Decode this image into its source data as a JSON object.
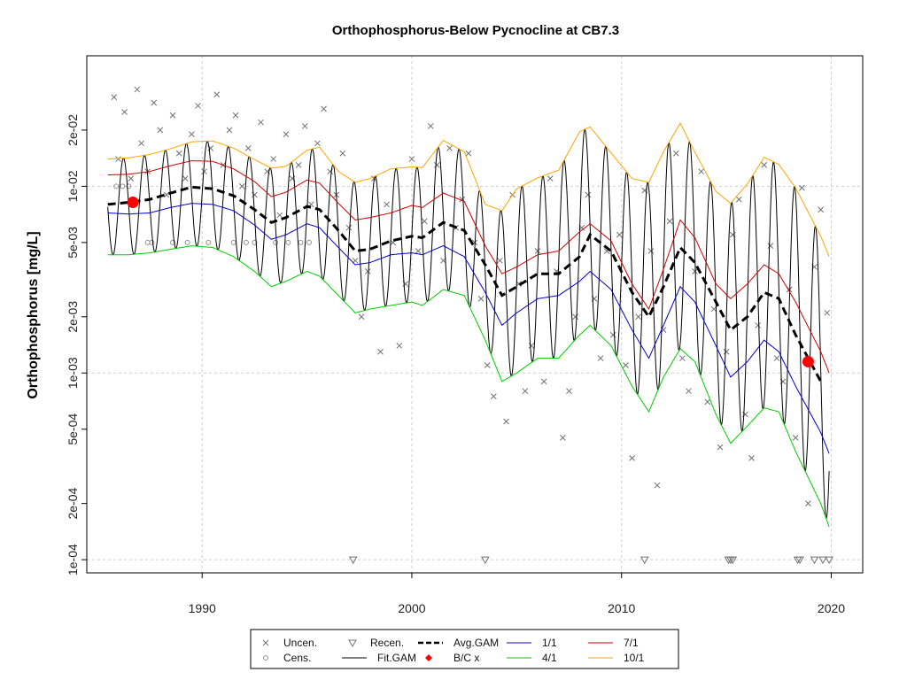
{
  "chart_data": {
    "type": "line",
    "title": "Orthophosphorus-Below Pycnocline at CB7.3",
    "xlabel": "",
    "ylabel": "Orthophosphorus [mg/L]",
    "y_scale": "log",
    "xlim": [
      1984.5,
      2021.5
    ],
    "ylim": [
      8.5e-05,
      0.05
    ],
    "x_ticks": [
      1990,
      2000,
      2010,
      2020
    ],
    "x_tick_labels": [
      "1990",
      "2000",
      "2010",
      "2020"
    ],
    "y_ticks": [
      0.0001,
      0.0002,
      0.0005,
      0.001,
      0.002,
      0.005,
      0.01,
      0.02
    ],
    "y_tick_labels": [
      "1e-04",
      "2e-04",
      "5e-04",
      "1e-03",
      "2e-03",
      "5e-03",
      "1e-02",
      "2e-02"
    ],
    "grid": true,
    "legend": {
      "position": "bottom-center",
      "entries": [
        "Uncen.",
        "Cens.",
        "Recen.",
        "Fit.GAM",
        "Avg.GAM",
        "B/C x",
        "1/1",
        "4/1",
        "7/1",
        "10/1"
      ]
    },
    "series": [
      {
        "name": "Avg.GAM",
        "color": "#000000",
        "x": [
          1985.5,
          1986.5,
          1987.5,
          1988.5,
          1989.5,
          1990.5,
          1991.5,
          1992.5,
          1993.3,
          1994.0,
          1995.0,
          1995.6,
          1996.5,
          1997.3,
          1998.0,
          1999.0,
          2000.0,
          2000.5,
          2001.5,
          2002.5,
          2003.5,
          2004.3,
          2005.0,
          2006.0,
          2007.0,
          2008.0,
          2008.5,
          2009.5,
          2010.5,
          2011.3,
          2012.0,
          2012.8,
          2013.5,
          2014.5,
          2015.2,
          2016.0,
          2016.8,
          2017.5,
          2018.3,
          2019.5
        ],
        "y": [
          0.008,
          0.0082,
          0.0085,
          0.0092,
          0.0099,
          0.0097,
          0.0089,
          0.0075,
          0.0064,
          0.0068,
          0.0078,
          0.0075,
          0.0058,
          0.0045,
          0.0046,
          0.0051,
          0.0054,
          0.0053,
          0.0064,
          0.0058,
          0.0038,
          0.0026,
          0.0029,
          0.0034,
          0.0034,
          0.0042,
          0.0055,
          0.0045,
          0.0027,
          0.002,
          0.0029,
          0.0047,
          0.0039,
          0.0024,
          0.0017,
          0.002,
          0.0027,
          0.0025,
          0.0016,
          0.0009
        ]
      },
      {
        "name": "1/1",
        "color": "#0000cc",
        "x": [
          1985.5,
          1986.5,
          1987.5,
          1988.5,
          1989.5,
          1990.5,
          1991.5,
          1992.5,
          1993.3,
          1994.0,
          1995.0,
          1995.6,
          1996.5,
          1997.3,
          1998.0,
          1999.0,
          2000.0,
          2000.5,
          2001.5,
          2002.5,
          2003.5,
          2004.3,
          2005.0,
          2006.0,
          2007.0,
          2008.0,
          2008.5,
          2009.5,
          2010.5,
          2011.3,
          2012.0,
          2012.8,
          2013.5,
          2014.5,
          2015.2,
          2016.0,
          2016.8,
          2017.5,
          2018.3,
          2019.5,
          2019.9
        ],
        "y": [
          0.0072,
          0.0071,
          0.0072,
          0.0077,
          0.0081,
          0.008,
          0.0074,
          0.0062,
          0.0052,
          0.0055,
          0.0063,
          0.006,
          0.0047,
          0.0038,
          0.0039,
          0.0043,
          0.0044,
          0.0043,
          0.0048,
          0.0042,
          0.0027,
          0.0018,
          0.0021,
          0.0025,
          0.0026,
          0.0031,
          0.0035,
          0.0028,
          0.0017,
          0.0012,
          0.0018,
          0.0029,
          0.0024,
          0.0014,
          0.00095,
          0.00115,
          0.0015,
          0.0013,
          0.00085,
          0.00048,
          0.00037
        ]
      },
      {
        "name": "4/1",
        "color": "#00cc00",
        "x": [
          1985.5,
          1986.5,
          1987.5,
          1988.5,
          1989.5,
          1990.5,
          1991.5,
          1992.5,
          1993.3,
          1994.0,
          1995.0,
          1995.6,
          1996.5,
          1997.3,
          1998.0,
          1999.0,
          2000.0,
          2000.5,
          2001.5,
          2002.5,
          2003.5,
          2004.3,
          2005.0,
          2006.0,
          2007.0,
          2008.0,
          2008.5,
          2009.5,
          2010.5,
          2011.3,
          2012.0,
          2012.8,
          2013.5,
          2014.5,
          2015.2,
          2016.0,
          2016.8,
          2017.5,
          2018.3,
          2019.5,
          2019.9
        ],
        "y": [
          0.0043,
          0.0043,
          0.0044,
          0.0046,
          0.0048,
          0.0047,
          0.0042,
          0.0035,
          0.0029,
          0.0031,
          0.0035,
          0.0033,
          0.0026,
          0.0021,
          0.0022,
          0.0023,
          0.0024,
          0.0023,
          0.0028,
          0.0026,
          0.0015,
          0.0009,
          0.001,
          0.0012,
          0.0012,
          0.0016,
          0.0018,
          0.0014,
          0.00085,
          0.00062,
          0.00095,
          0.00135,
          0.00115,
          0.0006,
          0.00042,
          0.00052,
          0.00065,
          0.00062,
          0.00038,
          0.0002,
          0.00015
        ]
      },
      {
        "name": "7/1",
        "color": "#cc0000",
        "x": [
          1985.5,
          1986.5,
          1987.5,
          1988.5,
          1989.5,
          1990.5,
          1991.5,
          1992.5,
          1993.3,
          1994.0,
          1995.0,
          1995.6,
          1996.5,
          1997.3,
          1998.0,
          1999.0,
          2000.0,
          2000.5,
          2001.5,
          2002.5,
          2003.5,
          2004.3,
          2005.0,
          2006.0,
          2007.0,
          2008.0,
          2008.5,
          2009.5,
          2010.5,
          2011.3,
          2012.0,
          2012.8,
          2013.5,
          2014.5,
          2015.2,
          2016.0,
          2016.8,
          2017.5,
          2018.3,
          2019.5,
          2019.9
        ],
        "y": [
          0.0115,
          0.0116,
          0.012,
          0.0129,
          0.0137,
          0.0136,
          0.0124,
          0.0106,
          0.0088,
          0.0093,
          0.0108,
          0.0104,
          0.0081,
          0.0066,
          0.0068,
          0.0072,
          0.0079,
          0.0077,
          0.0092,
          0.0083,
          0.0048,
          0.0034,
          0.0037,
          0.0043,
          0.0045,
          0.0057,
          0.0063,
          0.0051,
          0.003,
          0.0022,
          0.0036,
          0.0066,
          0.0053,
          0.003,
          0.0025,
          0.003,
          0.0038,
          0.0034,
          0.0024,
          0.0013,
          0.001
        ]
      },
      {
        "name": "10/1",
        "color": "#ffa500",
        "x": [
          1985.5,
          1986.5,
          1987.5,
          1988.5,
          1989.5,
          1990.5,
          1991.5,
          1992.5,
          1993.3,
          1994.0,
          1995.0,
          1995.6,
          1996.5,
          1997.3,
          1998.0,
          1999.0,
          2000.0,
          2000.5,
          2001.5,
          2002.5,
          2003.5,
          2004.3,
          2005.0,
          2006.0,
          2007.0,
          2008.0,
          2008.5,
          2009.5,
          2010.5,
          2011.3,
          2012.0,
          2012.8,
          2013.5,
          2014.5,
          2015.2,
          2016.0,
          2016.8,
          2017.5,
          2018.3,
          2019.5,
          2019.9
        ],
        "y": [
          0.014,
          0.0142,
          0.0148,
          0.0159,
          0.0173,
          0.0175,
          0.016,
          0.0139,
          0.0125,
          0.0128,
          0.0156,
          0.0162,
          0.012,
          0.0105,
          0.011,
          0.0124,
          0.0127,
          0.0126,
          0.0176,
          0.0153,
          0.008,
          0.0074,
          0.0097,
          0.0111,
          0.0122,
          0.0196,
          0.0208,
          0.0151,
          0.011,
          0.0105,
          0.0153,
          0.0218,
          0.0152,
          0.0094,
          0.0081,
          0.0103,
          0.0143,
          0.0131,
          0.0098,
          0.0054,
          0.0042
        ]
      }
    ],
    "fit_gam": {
      "name": "Fit.GAM",
      "color": "#000000",
      "seasonal_peaks_mg_l": [
        "10/1 curve"
      ],
      "seasonal_troughs_mg_l": [
        "4/1 curve"
      ]
    },
    "bc_points": {
      "name": "B/C x",
      "color": "#ff0000",
      "x": [
        1986.7,
        2018.9
      ],
      "y": [
        0.0082,
        0.00115
      ]
    },
    "scatter": {
      "uncensored": {
        "name": "Uncen.",
        "marker": "x",
        "color": "#707070",
        "x": [
          1985.8,
          1986.0,
          1986.3,
          1986.6,
          1986.9,
          1987.1,
          1987.4,
          1987.7,
          1988.0,
          1988.3,
          1988.6,
          1988.9,
          1989.2,
          1989.5,
          1989.8,
          1990.1,
          1990.4,
          1990.7,
          1991.0,
          1991.3,
          1991.6,
          1991.9,
          1992.2,
          1992.5,
          1992.8,
          1993.1,
          1993.4,
          1993.7,
          1994.0,
          1994.3,
          1994.6,
          1994.9,
          1995.2,
          1995.5,
          1995.8,
          1996.1,
          1996.4,
          1996.7,
          1997.0,
          1997.3,
          1997.6,
          1997.9,
          1998.2,
          1998.5,
          1998.8,
          1999.1,
          1999.4,
          1999.7,
          2000.0,
          2000.3,
          2000.6,
          2000.9,
          2001.2,
          2001.5,
          2001.8,
          2002.1,
          2002.4,
          2002.7,
          2003.0,
          2003.3,
          2003.6,
          2003.9,
          2004.2,
          2004.5,
          2004.8,
          2005.1,
          2005.4,
          2005.7,
          2006.0,
          2006.3,
          2006.6,
          2006.9,
          2007.2,
          2007.5,
          2007.8,
          2008.1,
          2008.4,
          2008.7,
          2009.0,
          2009.3,
          2009.6,
          2009.9,
          2010.2,
          2010.5,
          2010.8,
          2011.1,
          2011.4,
          2011.7,
          2012.0,
          2012.3,
          2012.6,
          2012.9,
          2013.2,
          2013.5,
          2013.8,
          2014.1,
          2014.4,
          2014.7,
          2015.0,
          2015.3,
          2015.6,
          2015.9,
          2016.2,
          2016.5,
          2016.8,
          2017.1,
          2017.4,
          2017.7,
          2018.0,
          2018.3,
          2018.6,
          2018.9,
          2019.2,
          2019.5,
          2019.8
        ],
        "y": [
          0.03,
          0.014,
          0.025,
          0.011,
          0.033,
          0.017,
          0.012,
          0.028,
          0.02,
          0.009,
          0.024,
          0.015,
          0.011,
          0.019,
          0.027,
          0.012,
          0.016,
          0.031,
          0.013,
          0.02,
          0.024,
          0.01,
          0.016,
          0.009,
          0.022,
          0.012,
          0.014,
          0.007,
          0.019,
          0.011,
          0.013,
          0.021,
          0.008,
          0.017,
          0.026,
          0.012,
          0.009,
          0.015,
          0.006,
          0.004,
          0.002,
          0.0035,
          0.011,
          0.0013,
          0.008,
          0.005,
          0.0014,
          0.003,
          0.014,
          0.0045,
          0.0065,
          0.021,
          0.013,
          0.004,
          0.016,
          0.006,
          0.0085,
          0.015,
          0.005,
          0.0025,
          0.0011,
          0.00075,
          0.004,
          0.00055,
          0.009,
          0.003,
          0.0008,
          0.0014,
          0.0045,
          0.0009,
          0.011,
          0.0035,
          0.00045,
          0.0008,
          0.002,
          0.006,
          0.009,
          0.0025,
          0.0012,
          0.0045,
          0.0016,
          0.0055,
          0.0011,
          0.00035,
          0.002,
          0.0095,
          0.0045,
          0.00025,
          0.0017,
          0.0065,
          0.015,
          0.0012,
          0.0008,
          0.0035,
          0.012,
          0.0007,
          0.0022,
          0.0004,
          0.0013,
          0.0055,
          0.0085,
          0.0006,
          0.00035,
          0.0018,
          0.013,
          0.0048,
          0.0012,
          0.0009,
          0.0028,
          0.00045,
          0.0098,
          0.0002,
          0.0037,
          0.0075,
          0.0021
        ]
      },
      "censored": {
        "name": "Cens.",
        "marker": "o",
        "color": "#909090",
        "x": [
          1985.9,
          1986.2,
          1986.5,
          1987.4,
          1987.6,
          1988.6,
          1989.3,
          1990.3,
          1991.5,
          1992.1,
          1992.5,
          1993.5,
          1994.1,
          1994.7,
          1995.1
        ],
        "y": [
          0.01,
          0.01,
          0.01,
          0.005,
          0.005,
          0.005,
          0.005,
          0.005,
          0.005,
          0.005,
          0.005,
          0.005,
          0.005,
          0.005,
          0.005
        ]
      },
      "recensored": {
        "name": "Recen.",
        "marker": "triangle-down",
        "color": "#707070",
        "x": [
          1997.2,
          2003.5,
          2011.1,
          2015.1,
          2015.2,
          2015.3,
          2018.4,
          2018.5,
          2019.2,
          2019.6,
          2019.9
        ],
        "y": [
          0.0001,
          0.0001,
          0.0001,
          0.0001,
          0.0001,
          0.0001,
          0.0001,
          0.0001,
          0.0001,
          0.0001,
          0.0001
        ]
      }
    }
  }
}
